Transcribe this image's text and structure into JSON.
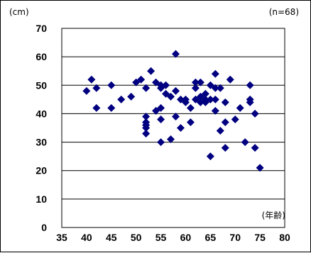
{
  "chart_data": {
    "type": "scatter",
    "title": "",
    "y_unit_label": "(cm)",
    "sample_label": "(n=68)",
    "x_unit_label": "(年齢)",
    "xlim": [
      35,
      80
    ],
    "ylim": [
      0,
      70
    ],
    "x_ticks": [
      35,
      40,
      45,
      50,
      55,
      60,
      65,
      70,
      75,
      80
    ],
    "y_ticks": [
      0,
      10,
      20,
      30,
      40,
      50,
      60,
      70
    ],
    "x_tick_labels": [
      "35",
      "40",
      "45",
      "50",
      "55",
      "60",
      "65",
      "70",
      "75",
      "80"
    ],
    "y_tick_labels": [
      "0",
      "10",
      "20",
      "30",
      "40",
      "50",
      "60",
      "70"
    ],
    "grid": "horizontal",
    "marker": "diamond",
    "marker_color": "#000080",
    "points": [
      [
        40,
        48
      ],
      [
        41,
        52
      ],
      [
        42,
        49
      ],
      [
        42,
        42
      ],
      [
        45,
        50
      ],
      [
        45,
        42
      ],
      [
        47,
        45
      ],
      [
        49,
        46
      ],
      [
        50,
        51
      ],
      [
        51,
        52
      ],
      [
        52,
        49
      ],
      [
        52,
        39
      ],
      [
        52,
        37
      ],
      [
        52,
        36
      ],
      [
        52,
        35
      ],
      [
        52,
        33
      ],
      [
        53,
        55
      ],
      [
        54,
        51
      ],
      [
        54,
        41
      ],
      [
        55,
        50
      ],
      [
        55,
        49
      ],
      [
        55,
        42
      ],
      [
        55,
        38
      ],
      [
        55,
        30
      ],
      [
        56,
        50
      ],
      [
        56,
        47
      ],
      [
        57,
        46
      ],
      [
        57,
        31
      ],
      [
        58,
        61
      ],
      [
        58,
        48
      ],
      [
        58,
        39
      ],
      [
        59,
        35
      ],
      [
        59,
        45
      ],
      [
        60,
        44
      ],
      [
        60,
        45
      ],
      [
        61,
        42
      ],
      [
        61,
        37
      ],
      [
        62,
        51
      ],
      [
        62,
        49
      ],
      [
        62,
        45
      ],
      [
        63,
        51
      ],
      [
        63,
        46
      ],
      [
        63,
        44
      ],
      [
        64,
        47
      ],
      [
        64,
        45
      ],
      [
        64,
        44
      ],
      [
        65,
        50
      ],
      [
        65,
        45
      ],
      [
        65,
        25
      ],
      [
        66,
        54
      ],
      [
        66,
        49
      ],
      [
        66,
        45
      ],
      [
        66,
        41
      ],
      [
        67,
        49
      ],
      [
        67,
        34
      ],
      [
        68,
        44
      ],
      [
        68,
        37
      ],
      [
        68,
        28
      ],
      [
        69,
        52
      ],
      [
        70,
        38
      ],
      [
        71,
        42
      ],
      [
        72,
        30
      ],
      [
        73,
        50
      ],
      [
        73,
        45
      ],
      [
        73,
        44
      ],
      [
        74,
        40
      ],
      [
        74,
        28
      ],
      [
        75,
        21
      ]
    ]
  }
}
